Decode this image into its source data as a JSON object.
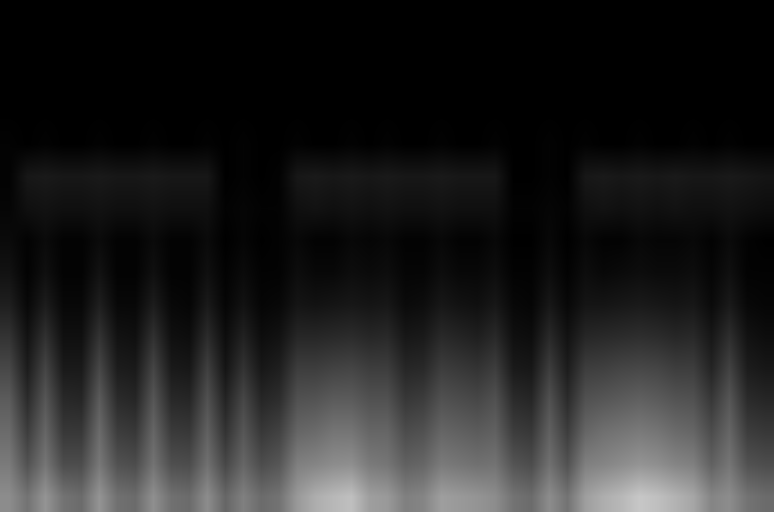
{
  "chart_data": {
    "type": "heatmap",
    "color": "#ffffff",
    "tick_labels": false,
    "grid": false,
    "zlim": [
      0,
      100
    ],
    "z": [
      [
        55,
        45,
        58,
        45,
        42,
        58,
        44,
        42,
        56,
        44,
        42,
        55,
        40,
        50,
        42,
        45,
        60,
        68,
        72,
        75,
        62,
        60,
        50,
        52,
        62,
        60,
        58,
        55,
        45,
        42,
        55,
        45,
        62,
        68,
        72,
        78,
        75,
        70,
        65,
        52,
        55,
        45,
        42
      ],
      [
        48,
        32,
        46,
        30,
        30,
        47,
        32,
        30,
        45,
        31,
        30,
        44,
        28,
        40,
        30,
        34,
        50,
        52,
        55,
        56,
        48,
        46,
        38,
        40,
        48,
        46,
        44,
        45,
        33,
        30,
        44,
        32,
        50,
        52,
        55,
        58,
        56,
        52,
        50,
        38,
        46,
        32,
        30
      ],
      [
        42,
        24,
        40,
        22,
        22,
        42,
        24,
        22,
        40,
        23,
        22,
        38,
        20,
        34,
        22,
        26,
        40,
        42,
        46,
        46,
        40,
        40,
        30,
        32,
        40,
        38,
        36,
        38,
        24,
        22,
        38,
        24,
        40,
        44,
        46,
        48,
        46,
        42,
        40,
        30,
        40,
        24,
        22
      ],
      [
        36,
        17,
        34,
        16,
        15,
        36,
        17,
        15,
        34,
        16,
        15,
        32,
        14,
        28,
        15,
        18,
        32,
        33,
        36,
        36,
        32,
        32,
        22,
        24,
        32,
        30,
        28,
        32,
        17,
        15,
        32,
        17,
        32,
        34,
        36,
        38,
        36,
        33,
        32,
        22,
        34,
        17,
        15
      ],
      [
        28,
        11,
        27,
        10,
        10,
        28,
        11,
        10,
        27,
        10,
        9,
        25,
        8,
        20,
        9,
        12,
        24,
        24,
        26,
        27,
        24,
        24,
        15,
        16,
        24,
        22,
        20,
        24,
        10,
        9,
        24,
        11,
        24,
        25,
        27,
        28,
        27,
        24,
        24,
        14,
        26,
        11,
        9
      ],
      [
        20,
        7,
        19,
        6,
        6,
        20,
        7,
        6,
        19,
        6,
        5,
        17,
        5,
        13,
        5,
        7,
        15,
        15,
        16,
        17,
        15,
        16,
        9,
        10,
        16,
        14,
        12,
        16,
        6,
        5,
        16,
        7,
        15,
        16,
        17,
        18,
        17,
        15,
        16,
        9,
        18,
        7,
        5
      ],
      [
        12,
        3,
        11,
        3,
        3,
        12,
        3,
        3,
        11,
        3,
        2,
        10,
        2,
        7,
        2,
        3,
        8,
        7,
        8,
        9,
        8,
        9,
        4,
        5,
        9,
        7,
        6,
        9,
        3,
        2,
        9,
        3,
        8,
        8,
        9,
        10,
        9,
        8,
        9,
        4,
        10,
        3,
        2
      ],
      [
        7,
        1,
        6,
        1,
        1,
        7,
        1,
        1,
        6,
        1,
        1,
        6,
        1,
        4,
        1,
        1,
        5,
        3,
        3,
        5,
        4,
        5,
        2,
        2,
        5,
        3,
        3,
        5,
        1,
        1,
        5,
        1,
        5,
        3,
        4,
        5,
        4,
        4,
        5,
        2,
        6,
        1,
        1
      ],
      [
        4,
        1,
        4,
        1,
        1,
        4,
        1,
        1,
        4,
        1,
        1,
        4,
        0,
        2,
        0,
        1,
        3,
        1,
        1,
        3,
        2,
        3,
        1,
        1,
        3,
        1,
        1,
        3,
        0,
        0,
        3,
        0,
        3,
        1,
        1,
        3,
        2,
        2,
        3,
        1,
        4,
        1,
        0
      ],
      [
        2,
        6,
        7,
        6,
        6,
        7,
        6,
        6,
        7,
        6,
        6,
        6,
        1,
        2,
        1,
        1,
        6,
        7,
        6,
        7,
        6,
        7,
        6,
        6,
        7,
        6,
        6,
        6,
        1,
        1,
        2,
        1,
        6,
        7,
        6,
        7,
        6,
        7,
        6,
        6,
        7,
        6,
        5
      ],
      [
        1,
        9,
        10,
        9,
        9,
        10,
        9,
        9,
        10,
        9,
        9,
        9,
        0,
        1,
        0,
        1,
        9,
        10,
        9,
        10,
        9,
        10,
        9,
        9,
        10,
        9,
        9,
        9,
        0,
        0,
        1,
        0,
        9,
        10,
        9,
        10,
        9,
        10,
        9,
        9,
        10,
        9,
        8
      ],
      [
        1,
        0,
        1,
        0,
        0,
        1,
        0,
        0,
        1,
        0,
        0,
        1,
        0,
        1,
        0,
        0,
        1,
        0,
        0,
        1,
        0,
        1,
        0,
        0,
        1,
        0,
        0,
        1,
        0,
        0,
        1,
        0,
        1,
        0,
        0,
        1,
        0,
        0,
        1,
        0,
        1,
        0,
        0
      ],
      [
        0,
        0,
        0,
        0,
        0,
        0,
        0,
        0,
        0,
        0,
        0,
        0,
        0,
        0,
        0,
        0,
        0,
        0,
        0,
        0,
        0,
        0,
        0,
        0,
        0,
        0,
        0,
        0,
        0,
        0,
        0,
        0,
        0,
        0,
        0,
        0,
        0,
        0,
        0,
        0,
        0,
        0,
        0
      ],
      [
        0,
        0,
        0,
        0,
        0,
        0,
        0,
        0,
        0,
        0,
        0,
        0,
        0,
        0,
        0,
        0,
        0,
        0,
        0,
        0,
        0,
        0,
        0,
        0,
        0,
        0,
        0,
        0,
        0,
        0,
        0,
        0,
        0,
        0,
        0,
        0,
        0,
        0,
        0,
        0,
        0,
        0,
        0
      ],
      [
        0,
        0,
        0,
        0,
        0,
        0,
        0,
        0,
        0,
        0,
        0,
        0,
        0,
        0,
        0,
        0,
        0,
        0,
        0,
        0,
        0,
        0,
        0,
        0,
        0,
        0,
        0,
        0,
        0,
        0,
        0,
        0,
        0,
        0,
        0,
        0,
        0,
        0,
        0,
        0,
        0,
        0,
        0
      ],
      [
        0,
        0,
        0,
        0,
        0,
        0,
        0,
        0,
        0,
        0,
        0,
        0,
        0,
        0,
        0,
        0,
        0,
        0,
        0,
        0,
        0,
        0,
        0,
        0,
        0,
        0,
        0,
        0,
        0,
        0,
        0,
        0,
        0,
        0,
        0,
        0,
        0,
        0,
        0,
        0,
        0,
        0,
        0
      ]
    ]
  }
}
